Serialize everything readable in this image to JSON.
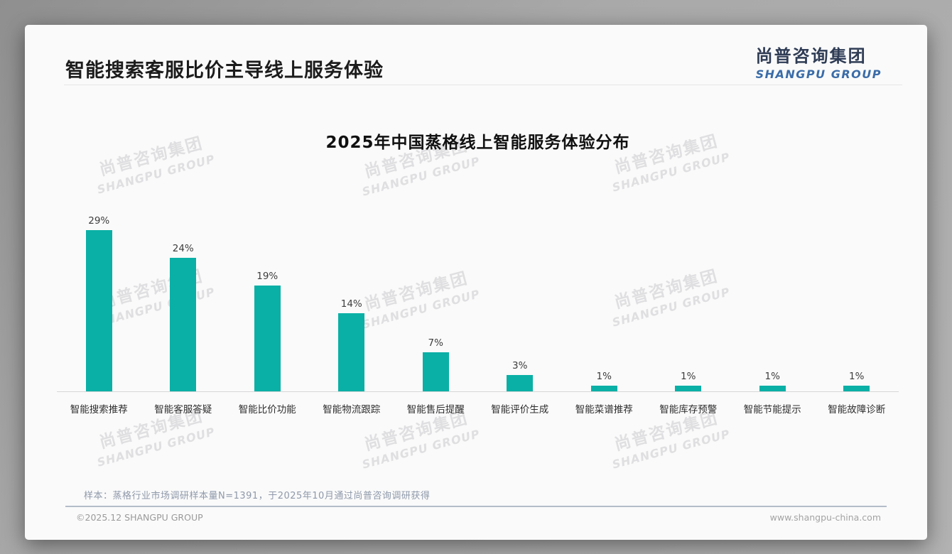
{
  "page": {
    "title": "智能搜索客服比价主导线上服务体验",
    "logo": {
      "cn": "尚普咨询集团",
      "en": "SHANGPU GROUP"
    }
  },
  "watermark": {
    "line1": "尚普咨询集团",
    "line2": "SHANGPU GROUP"
  },
  "chart_data": {
    "type": "bar",
    "title": "2025年中国蒸格线上智能服务体验分布",
    "categories": [
      "智能搜索推荐",
      "智能客服答疑",
      "智能比价功能",
      "智能物流跟踪",
      "智能售后提醒",
      "智能评价生成",
      "智能菜谱推荐",
      "智能库存预警",
      "智能节能提示",
      "智能故障诊断"
    ],
    "values": [
      29,
      24,
      19,
      14,
      7,
      3,
      1,
      1,
      1,
      1
    ],
    "value_labels": [
      "29%",
      "24%",
      "19%",
      "14%",
      "7%",
      "3%",
      "1%",
      "1%",
      "1%",
      "1%"
    ],
    "unit": "%",
    "ylim": [
      0,
      30
    ],
    "grid": false,
    "legend": null,
    "bar_color": "#0ab0a6",
    "xlabel": "",
    "ylabel": ""
  },
  "footnote": "样本：蒸格行业市场调研样本量N=1391，于2025年10月通过尚普咨询调研获得",
  "footer": {
    "left": "©2025.12 SHANGPU GROUP",
    "right": "www.shangpu-china.com"
  },
  "colors": {
    "accent_teal": "#0ab0a6",
    "logo_navy": "#2f3c55",
    "logo_blue": "#3a6ca8",
    "footnote_gray_blue": "#8f99aa"
  }
}
